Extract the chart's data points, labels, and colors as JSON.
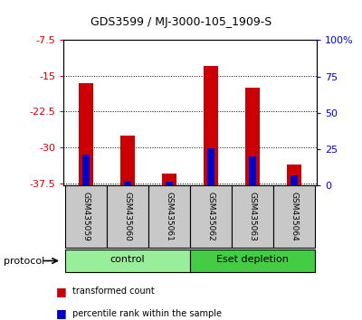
{
  "title": "GDS3599 / MJ-3000-105_1909-S",
  "samples": [
    "GSM435059",
    "GSM435060",
    "GSM435061",
    "GSM435062",
    "GSM435063",
    "GSM435064"
  ],
  "red_tops": [
    -16.5,
    -27.5,
    -35.5,
    -13.0,
    -17.5,
    -33.5
  ],
  "blue_tops": [
    -31.5,
    -37.0,
    -37.2,
    -30.2,
    -31.8,
    -35.8
  ],
  "bar_base": -38.0,
  "ylim": [
    -38.0,
    -7.5
  ],
  "yticks_left": [
    -7.5,
    -15,
    -22.5,
    -30,
    -37.5
  ],
  "yticks_right_pct": [
    0,
    25,
    50,
    75,
    100
  ],
  "groups": [
    {
      "label": "control",
      "start": 0,
      "end": 3,
      "color": "#99ee99"
    },
    {
      "label": "Eset depletion",
      "start": 3,
      "end": 6,
      "color": "#44cc44"
    }
  ],
  "protocol_label": "protocol",
  "red_bar_width": 0.35,
  "blue_bar_width": 0.18,
  "red_color": "#cc0000",
  "blue_color": "#0000cc",
  "sample_bg": "#c8c8c8",
  "legend_items": [
    {
      "color": "#cc0000",
      "label": "transformed count"
    },
    {
      "color": "#0000cc",
      "label": "percentile rank within the sample"
    }
  ]
}
